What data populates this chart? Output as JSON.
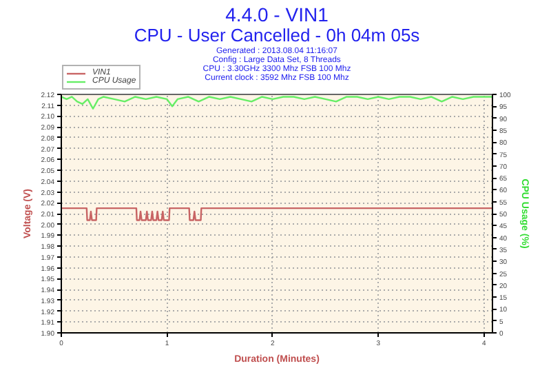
{
  "chart_data": {
    "type": "line",
    "title": "4.4.0 - VIN1",
    "subtitle": "CPU - User Cancelled - 0h 04m 05s",
    "annotations": [
      "Generated : 2013.08.04 11:16:07",
      "Config : Large Data Set, 8 Threads",
      "CPU : 3.30GHz 3300 Mhz FSB 100 Mhz",
      "Current clock : 3592 Mhz FSB 100 Mhz"
    ],
    "xlabel": "Duration (Minutes)",
    "ylabel": "Voltage (V)",
    "y2label": "CPU Usage (%)",
    "xlim": [
      0,
      4.08
    ],
    "xticks": [
      0,
      1,
      2,
      3,
      4
    ],
    "ylim": [
      1.9,
      2.12
    ],
    "yticks": [
      {
        "value": 1.9,
        "label": "1.90"
      },
      1.91,
      1.92,
      1.93,
      1.94,
      1.95,
      1.96,
      1.97,
      1.98,
      1.99,
      {
        "value": 2.0,
        "label": "2.00"
      },
      2.01,
      2.02,
      2.03,
      2.04,
      2.05,
      2.06,
      2.07,
      2.08,
      2.09,
      {
        "value": 2.1,
        "label": "2.10"
      },
      2.11,
      2.12
    ],
    "y2lim": [
      0,
      100
    ],
    "y2ticks": [
      0,
      5,
      10,
      15,
      20,
      25,
      30,
      35,
      40,
      45,
      50,
      55,
      60,
      65,
      70,
      75,
      80,
      85,
      90,
      95,
      100
    ],
    "grid": true,
    "legend": "top left",
    "line_style": "solid",
    "marker": "none",
    "series": [
      {
        "name": "VIN1",
        "color": "#c86464",
        "x": [
          0,
          0.24,
          0.245,
          0.27,
          0.28,
          0.29,
          0.33,
          0.335,
          0.71,
          0.715,
          0.74,
          0.75,
          0.76,
          0.8,
          0.81,
          0.82,
          0.85,
          0.86,
          0.87,
          0.9,
          0.91,
          0.92,
          0.95,
          0.96,
          0.97,
          1.02,
          1.025,
          1.21,
          1.215,
          1.25,
          1.26,
          1.27,
          1.32,
          1.325,
          4.08
        ],
        "values": [
          2.015,
          2.015,
          2.004,
          2.004,
          2.012,
          2.004,
          2.004,
          2.015,
          2.015,
          2.004,
          2.004,
          2.012,
          2.004,
          2.004,
          2.012,
          2.004,
          2.004,
          2.012,
          2.004,
          2.004,
          2.012,
          2.004,
          2.004,
          2.012,
          2.004,
          2.004,
          2.015,
          2.015,
          2.004,
          2.004,
          2.012,
          2.004,
          2.004,
          2.015,
          2.015
        ]
      },
      {
        "name": "CPU Usage",
        "color": "#66ee66",
        "axis": "y2",
        "x": [
          0,
          0.05,
          0.1,
          0.15,
          0.2,
          0.25,
          0.3,
          0.35,
          0.4,
          0.5,
          0.6,
          0.7,
          0.8,
          0.9,
          1.0,
          1.05,
          1.1,
          1.2,
          1.3,
          1.4,
          1.5,
          1.6,
          1.7,
          1.8,
          1.9,
          2.0,
          2.1,
          2.2,
          2.3,
          2.4,
          2.5,
          2.6,
          2.7,
          2.8,
          2.9,
          3.0,
          3.1,
          3.2,
          3.3,
          3.4,
          3.5,
          3.6,
          3.7,
          3.8,
          3.9,
          4.0,
          4.08
        ],
        "values": [
          99,
          98,
          99,
          97,
          96,
          98,
          94,
          98,
          99,
          98,
          97,
          99,
          98,
          99,
          98,
          95,
          98,
          99,
          97,
          99,
          98,
          99,
          98,
          97,
          99,
          98,
          99,
          99,
          98,
          99,
          98,
          97,
          99,
          99,
          98,
          99,
          98,
          99,
          99,
          98,
          99,
          97,
          99,
          98,
          99,
          99,
          99
        ]
      }
    ]
  }
}
